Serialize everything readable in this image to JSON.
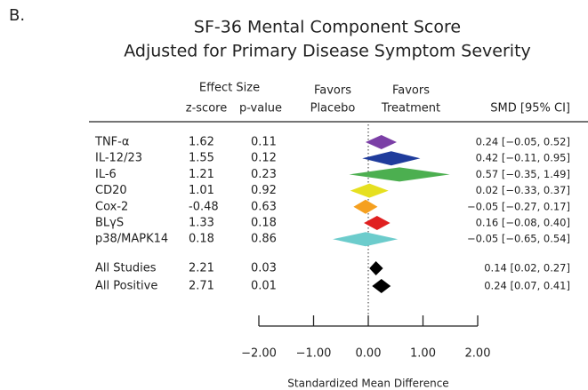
{
  "chart_data": {
    "type": "forest",
    "panel_label": "B.",
    "title": "SF-36 Mental Component Score",
    "subtitle": "Adjusted for Primary Disease Symptom Severity",
    "effect_header": "Effect Size",
    "z_header": "z-score",
    "p_header": "p-value",
    "favors_left": [
      "Favors",
      "Placebo"
    ],
    "favors_right": [
      "Favors",
      "Treatment"
    ],
    "ci_header": "SMD [95% CI]",
    "xlabel": "Standardized Mean Difference",
    "categories": [
      "TNF-α",
      "IL-12/23",
      "IL-6",
      "CD20",
      "Cox-2",
      "BLγS",
      "p38/MAPK14",
      "All Studies",
      "All Positive"
    ],
    "z_scores": [
      1.62,
      1.55,
      1.21,
      1.01,
      -0.48,
      1.33,
      0.18,
      2.21,
      2.71
    ],
    "p_values": [
      0.11,
      0.12,
      0.23,
      0.92,
      0.63,
      0.18,
      0.86,
      0.03,
      0.01
    ],
    "values": [
      0.24,
      0.42,
      0.57,
      0.02,
      -0.05,
      0.16,
      -0.05,
      0.14,
      0.24
    ],
    "ci_lower": [
      -0.05,
      -0.11,
      -0.35,
      -0.33,
      -0.27,
      -0.08,
      -0.65,
      0.02,
      0.07
    ],
    "ci_upper": [
      0.52,
      0.95,
      1.49,
      0.37,
      0.17,
      0.4,
      0.54,
      0.27,
      0.41
    ],
    "value_labels": [
      "0.24 [−0.05, 0.52]",
      "0.42 [−0.11, 0.95]",
      "0.57 [−0.35, 1.49]",
      "0.02 [−0.33, 0.37]",
      "−0.05 [−0.27, 0.17]",
      "0.16 [−0.08, 0.40]",
      "−0.05 [−0.65, 0.54]",
      "0.14 [0.02, 0.27]",
      "0.24 [0.07, 0.41]"
    ],
    "colors": [
      "#7b3fa6",
      "#1f3c9c",
      "#4caf50",
      "#e6e020",
      "#f5a020",
      "#e02020",
      "#6ccccc",
      "#000000",
      "#000000"
    ],
    "xlim": [
      -2,
      2
    ],
    "xticks": [
      {
        "value": -2,
        "label": "−2.00"
      },
      {
        "value": -1,
        "label": "−1.00"
      },
      {
        "value": 0,
        "label": "0.00"
      },
      {
        "value": 1,
        "label": "1.00"
      },
      {
        "value": 2,
        "label": "2.00"
      }
    ]
  }
}
